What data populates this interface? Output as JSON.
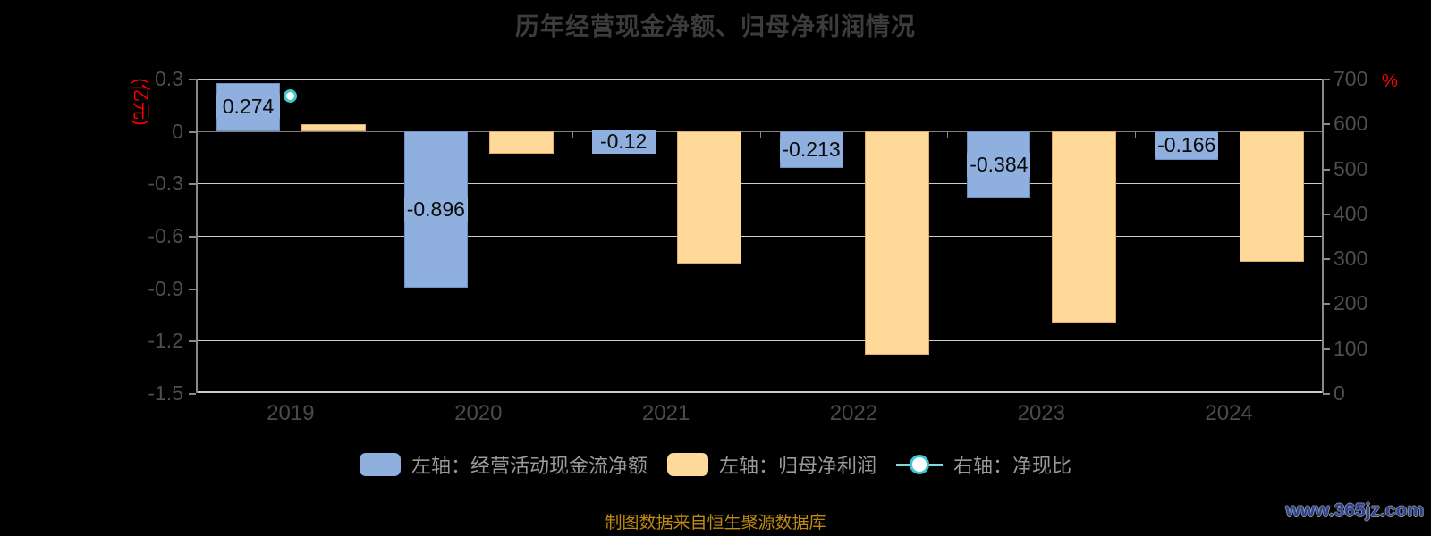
{
  "title": "历年经营现金净额、归母净利润情况",
  "colors": {
    "background": "#000000",
    "bar_cashflow": "#8FB0DE",
    "bar_cashflow_border": "#6B8FC6",
    "bar_profit": "#FFD99A",
    "bar_profit_border": "#E2AC66",
    "ratio_teal": "#3EC6CE",
    "ratio_line_light": "#7FD8DC",
    "grid_line": "#CBCBCB",
    "zero_line": "#808080",
    "axis_line": "#8A8A8A",
    "tick_label": "#4E4E4E",
    "axis_unit_red": "#FF0000",
    "data_label": "#0A0A0A",
    "legend_text": "#9A9A9A",
    "footer_text": "#BE8A12",
    "watermark_text": "#27429B"
  },
  "chart_data": {
    "type": "bar",
    "categories": [
      "2019",
      "2020",
      "2021",
      "2022",
      "2023",
      "2024"
    ],
    "series": [
      {
        "name": "左轴：经营活动现金流净额",
        "type": "bar",
        "axis": "left",
        "color_key": "bar_cashflow",
        "values": [
          0.274,
          -0.896,
          -0.12,
          -0.213,
          -0.384,
          -0.166
        ],
        "labels": [
          "0.274",
          "-0.896",
          "-0.12",
          "-0.213",
          "-0.384",
          "-0.166"
        ]
      },
      {
        "name": "左轴：归母净利润",
        "type": "bar",
        "axis": "left",
        "color_key": "bar_profit",
        "values": [
          0.041,
          -0.13,
          -0.76,
          -1.28,
          -1.1,
          -0.75
        ],
        "labels": null
      },
      {
        "name": "右轴：净现比",
        "type": "scatter",
        "axis": "right",
        "color_key": "ratio_teal",
        "values": [
          662,
          null,
          null,
          null,
          null,
          null
        ]
      }
    ],
    "left_axis": {
      "unit": "(亿元)",
      "min": -1.5,
      "max": 0.3,
      "ticks": [
        0.3,
        0,
        -0.3,
        -0.6,
        -0.9,
        -1.2,
        -1.5
      ]
    },
    "right_axis": {
      "unit": "%",
      "min": 0,
      "max": 700,
      "ticks": [
        700,
        600,
        500,
        400,
        300,
        200,
        100,
        0
      ]
    },
    "grid": true,
    "legend_position": "bottom"
  },
  "footer": {
    "source": "制图数据来自恒生聚源数据库",
    "watermark": "www.365jz.com"
  }
}
